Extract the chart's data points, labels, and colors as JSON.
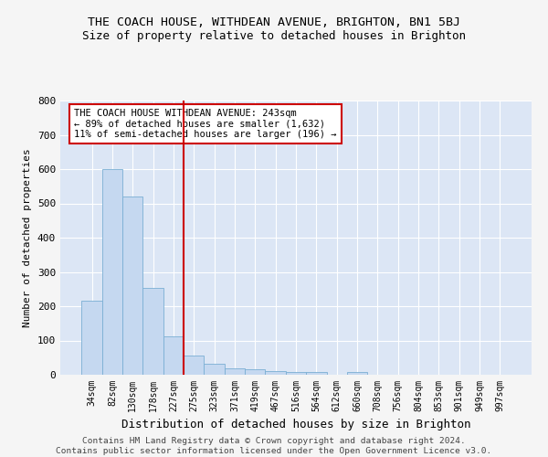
{
  "title": "THE COACH HOUSE, WITHDEAN AVENUE, BRIGHTON, BN1 5BJ",
  "subtitle": "Size of property relative to detached houses in Brighton",
  "xlabel": "Distribution of detached houses by size in Brighton",
  "ylabel": "Number of detached properties",
  "bar_labels": [
    "34sqm",
    "82sqm",
    "130sqm",
    "178sqm",
    "227sqm",
    "275sqm",
    "323sqm",
    "371sqm",
    "419sqm",
    "467sqm",
    "516sqm",
    "564sqm",
    "612sqm",
    "660sqm",
    "708sqm",
    "756sqm",
    "804sqm",
    "853sqm",
    "901sqm",
    "949sqm",
    "997sqm"
  ],
  "bar_values": [
    215,
    600,
    520,
    253,
    113,
    55,
    33,
    18,
    15,
    10,
    7,
    8,
    0,
    7,
    0,
    0,
    0,
    0,
    0,
    0,
    0
  ],
  "bar_color": "#c5d8f0",
  "bar_edge_color": "#7aafd4",
  "vline_position": 4.48,
  "vline_color": "#cc0000",
  "ylim": [
    0,
    800
  ],
  "yticks": [
    0,
    100,
    200,
    300,
    400,
    500,
    600,
    700,
    800
  ],
  "bg_color": "#dce6f5",
  "grid_color": "#ffffff",
  "fig_bg_color": "#f5f5f5",
  "annotation_text": "THE COACH HOUSE WITHDEAN AVENUE: 243sqm\n← 89% of detached houses are smaller (1,632)\n11% of semi-detached houses are larger (196) →",
  "annotation_box_color": "#ffffff",
  "annotation_box_edgecolor": "#cc0000",
  "footer_text": "Contains HM Land Registry data © Crown copyright and database right 2024.\nContains public sector information licensed under the Open Government Licence v3.0.",
  "title_fontsize": 9.5,
  "subtitle_fontsize": 9,
  "xlabel_fontsize": 9,
  "ylabel_fontsize": 8,
  "annotation_fontsize": 7.5,
  "footer_fontsize": 6.8
}
